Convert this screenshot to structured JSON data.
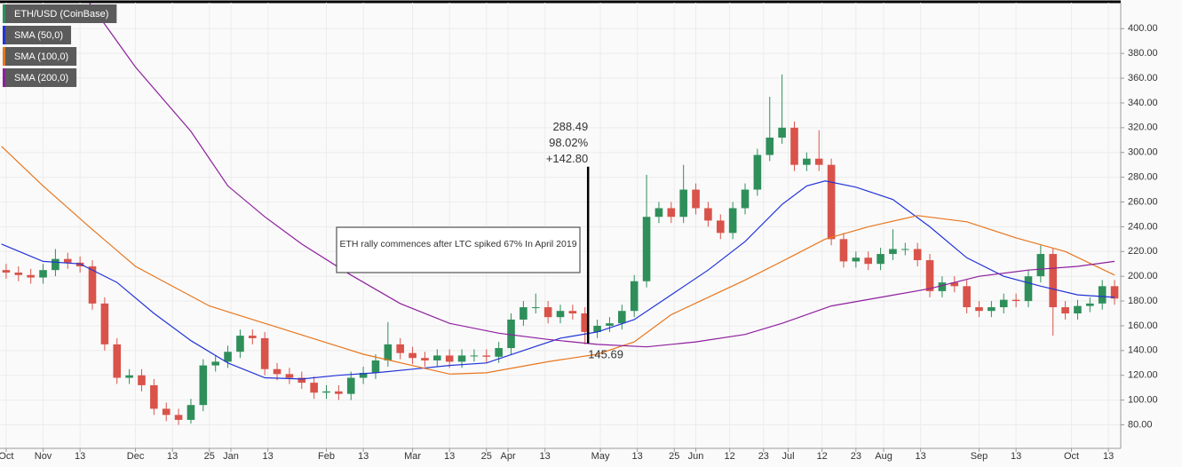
{
  "chart_data": {
    "type": "candlestick",
    "name": "ETH/USD (CoinBase)",
    "up_color": "#2f8f5b",
    "down_color": "#d9534a",
    "x": [
      19,
      23,
      27,
      31,
      35,
      39,
      43,
      47,
      51,
      55,
      59,
      63,
      67,
      71,
      75,
      79,
      83,
      87,
      91,
      95,
      99,
      103,
      107,
      111,
      115,
      119,
      123,
      127,
      131,
      135,
      139,
      143,
      147,
      151,
      155,
      159,
      163,
      167,
      171,
      175,
      179,
      183,
      187,
      191,
      195,
      199,
      203,
      207,
      211,
      215,
      219,
      223,
      227,
      231,
      235,
      239,
      243,
      247,
      251,
      255,
      259,
      263,
      267,
      271,
      275,
      279,
      283,
      287,
      291,
      295,
      299,
      303,
      307,
      311,
      315,
      319,
      323,
      327,
      331,
      335,
      339,
      343,
      347,
      351,
      355,
      359,
      363,
      367,
      371,
      375,
      379
    ],
    "open": [
      205,
      203,
      201,
      199,
      205,
      214,
      211,
      208,
      178,
      145,
      118,
      120,
      112,
      93,
      88,
      84,
      96,
      128,
      131,
      139,
      152,
      150,
      125,
      121,
      118,
      114,
      106,
      107,
      105,
      118,
      122,
      132,
      145,
      138,
      134,
      132,
      136,
      131,
      136,
      136,
      135,
      142,
      165,
      175,
      175,
      167,
      172,
      170,
      155,
      160,
      162,
      172,
      196,
      248,
      255,
      248,
      270,
      255,
      245,
      235,
      255,
      270,
      298,
      312,
      320,
      290,
      295,
      290,
      230,
      212,
      215,
      210,
      218,
      222,
      222,
      213,
      188,
      195,
      192,
      175,
      172,
      175,
      181,
      180,
      200,
      218,
      175,
      170,
      176,
      178,
      192
    ],
    "high": [
      210,
      208,
      206,
      210,
      222,
      219,
      216,
      213,
      183,
      150,
      125,
      125,
      117,
      98,
      93,
      101,
      133,
      136,
      144,
      157,
      157,
      155,
      130,
      126,
      123,
      119,
      112,
      112,
      123,
      127,
      137,
      163,
      150,
      143,
      139,
      141,
      141,
      141,
      141,
      141,
      147,
      170,
      180,
      186,
      180,
      177,
      177,
      175,
      165,
      167,
      177,
      201,
      282,
      260,
      260,
      290,
      275,
      260,
      250,
      260,
      275,
      303,
      345,
      363,
      325,
      300,
      318,
      295,
      235,
      220,
      220,
      223,
      238,
      227,
      227,
      218,
      200,
      200,
      197,
      180,
      180,
      186,
      186,
      205,
      225,
      223,
      180,
      181,
      183,
      197,
      197
    ],
    "low": [
      198,
      196,
      194,
      194,
      200,
      206,
      203,
      173,
      140,
      113,
      113,
      107,
      88,
      83,
      80,
      81,
      91,
      123,
      126,
      134,
      145,
      120,
      116,
      113,
      109,
      101,
      101,
      100,
      100,
      113,
      117,
      127,
      133,
      129,
      127,
      127,
      126,
      126,
      131,
      130,
      130,
      137,
      160,
      170,
      162,
      162,
      165,
      145,
      150,
      155,
      157,
      167,
      191,
      243,
      243,
      243,
      250,
      240,
      230,
      230,
      250,
      265,
      293,
      307,
      285,
      285,
      285,
      225,
      207,
      207,
      205,
      205,
      213,
      217,
      208,
      183,
      183,
      187,
      170,
      167,
      167,
      170,
      175,
      175,
      195,
      152,
      165,
      165,
      171,
      173,
      177
    ],
    "close": [
      203,
      201,
      199,
      205,
      214,
      211,
      208,
      178,
      145,
      118,
      120,
      112,
      93,
      88,
      84,
      96,
      128,
      131,
      139,
      152,
      150,
      125,
      121,
      118,
      114,
      106,
      107,
      105,
      118,
      122,
      132,
      145,
      138,
      134,
      132,
      136,
      131,
      136,
      136,
      135,
      142,
      165,
      175,
      175,
      167,
      172,
      170,
      155,
      160,
      162,
      172,
      196,
      248,
      255,
      248,
      270,
      255,
      245,
      235,
      255,
      270,
      298,
      312,
      320,
      290,
      295,
      290,
      230,
      212,
      215,
      210,
      218,
      222,
      222,
      213,
      188,
      195,
      192,
      175,
      172,
      175,
      181,
      180,
      200,
      218,
      175,
      170,
      176,
      178,
      192,
      182
    ],
    "series": [
      {
        "name": "SMA (50,0)",
        "color": "#2233d8",
        "x": [
          17.5,
          31,
          43,
          55,
          67,
          79,
          91,
          103,
          115,
          127,
          139,
          151,
          163,
          175,
          187,
          199,
          211,
          223,
          235,
          247,
          259,
          271,
          279,
          285,
          295,
          307,
          319,
          331,
          343,
          355,
          367,
          379
        ],
        "values": [
          226,
          212,
          210,
          195,
          170,
          148,
          130,
          118,
          117,
          120,
          122,
          125,
          128,
          130,
          140,
          150,
          155,
          165,
          185,
          205,
          228,
          258,
          273,
          277,
          272,
          262,
          240,
          215,
          200,
          192,
          185,
          183
        ]
      },
      {
        "name": "SMA (100,0)",
        "color": "#e8761e",
        "x": [
          17.5,
          31,
          46,
          61,
          85,
          103,
          135,
          163,
          175,
          195,
          211,
          223,
          235,
          247,
          259,
          271,
          285,
          299,
          315,
          331,
          347,
          363,
          379
        ],
        "values": [
          305,
          273,
          240,
          208,
          176,
          162,
          137,
          121,
          122,
          131,
          137,
          147,
          169,
          183,
          197,
          212,
          230,
          240,
          249,
          244,
          231,
          220,
          201
        ]
      },
      {
        "name": "SMA (200,0)",
        "color": "#8e1f9e",
        "x": [
          46,
          61,
          79,
          91,
          103,
          115,
          131,
          147,
          163,
          179,
          195,
          211,
          227,
          243,
          259,
          271,
          287,
          303,
          319,
          335,
          351,
          367,
          379
        ],
        "values": [
          421,
          369,
          317,
          273,
          248,
          226,
          201,
          178,
          162,
          154,
          149,
          145,
          143,
          147,
          153,
          162,
          176,
          183,
          190,
          200,
          205,
          208,
          212
        ]
      }
    ],
    "measure": {
      "x": 208,
      "low": 145.69,
      "high": 288.49,
      "percent_label": "98.02%",
      "change_label": "+142.80"
    },
    "annotation": "ETH rally commences after LTC spiked 67%  In April 2019",
    "xlim": [
      17,
      381
    ],
    "xticks": [
      {
        "value": 19,
        "label": "Oct"
      },
      {
        "value": 31,
        "label": "Nov"
      },
      {
        "value": 43,
        "label": "13"
      },
      {
        "value": 61,
        "label": "Dec"
      },
      {
        "value": 73,
        "label": "13"
      },
      {
        "value": 85,
        "label": "25"
      },
      {
        "value": 92,
        "label": "Jan"
      },
      {
        "value": 104,
        "label": "13"
      },
      {
        "value": 123,
        "label": "Feb"
      },
      {
        "value": 135,
        "label": "13"
      },
      {
        "value": 151,
        "label": "Mar"
      },
      {
        "value": 163,
        "label": "13"
      },
      {
        "value": 175,
        "label": "25"
      },
      {
        "value": 182,
        "label": "Apr"
      },
      {
        "value": 194,
        "label": "13"
      },
      {
        "value": 212,
        "label": "May"
      },
      {
        "value": 224,
        "label": "13"
      },
      {
        "value": 236,
        "label": "25"
      },
      {
        "value": 243,
        "label": "Jun"
      },
      {
        "value": 254,
        "label": "12"
      },
      {
        "value": 265,
        "label": "23"
      },
      {
        "value": 273,
        "label": "Jul"
      },
      {
        "value": 284,
        "label": "12"
      },
      {
        "value": 295,
        "label": "23"
      },
      {
        "value": 304,
        "label": "Aug"
      },
      {
        "value": 316,
        "label": "13"
      },
      {
        "value": 335,
        "label": "Sep"
      },
      {
        "value": 347,
        "label": "13"
      },
      {
        "value": 365,
        "label": "Oct"
      },
      {
        "value": 377,
        "label": "13"
      }
    ],
    "ylim": [
      61,
      421
    ],
    "yticks": [
      {
        "value": 80,
        "label": "80.00"
      },
      {
        "value": 100,
        "label": "100.00"
      },
      {
        "value": 120,
        "label": "120.00"
      },
      {
        "value": 140,
        "label": "140.00"
      },
      {
        "value": 160,
        "label": "160.00"
      },
      {
        "value": 180,
        "label": "180.00"
      },
      {
        "value": 200,
        "label": "200.00"
      },
      {
        "value": 220,
        "label": "220.00"
      },
      {
        "value": 240,
        "label": "240.00"
      },
      {
        "value": 260,
        "label": "260.00"
      },
      {
        "value": 280,
        "label": "280.00"
      },
      {
        "value": 300,
        "label": "300.00"
      },
      {
        "value": 320,
        "label": "320.00"
      },
      {
        "value": 340,
        "label": "340.00"
      },
      {
        "value": 360,
        "label": "360.00"
      },
      {
        "value": 380,
        "label": "380.00"
      },
      {
        "value": 400,
        "label": "400.00"
      }
    ],
    "grid": true
  }
}
